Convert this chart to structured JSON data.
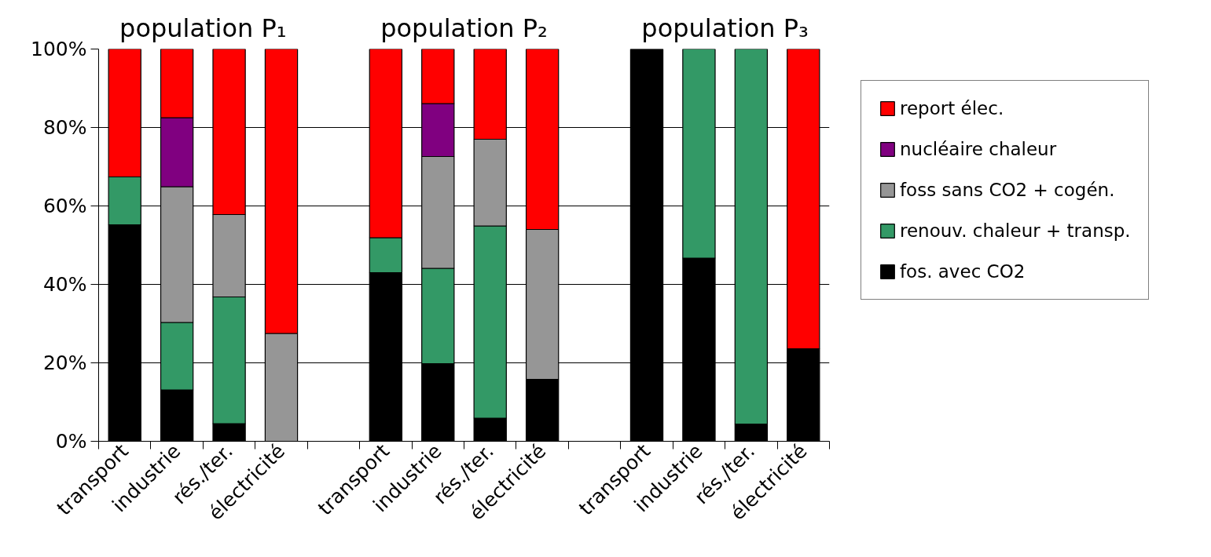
{
  "chart_data": {
    "type": "bar",
    "stacked": true,
    "categories": [
      "transport",
      "industrie",
      "rés./ter.",
      "électricité",
      null,
      "transport",
      "industrie",
      "rés./ter.",
      "électricité",
      null,
      "transport",
      "industrie",
      "rés./ter.",
      "électricité"
    ],
    "series": [
      {
        "name": "fos. avec CO2",
        "color": "#000000",
        "values": [
          55.2,
          13.1,
          4.5,
          null,
          null,
          43.0,
          19.8,
          5.9,
          15.8,
          null,
          100,
          46.7,
          4.4,
          23.6
        ]
      },
      {
        "name": "renouv. chaleur + transp.",
        "color": "#339966",
        "values": [
          12.2,
          17.2,
          32.3,
          null,
          null,
          8.9,
          24.3,
          49.0,
          null,
          null,
          null,
          53.3,
          95.6,
          null
        ]
      },
      {
        "name": "foss sans CO2 + cogén.",
        "color": "#969696",
        "values": [
          null,
          34.6,
          21.0,
          27.5,
          null,
          null,
          28.5,
          22.1,
          38.2,
          null,
          null,
          null,
          null,
          null
        ]
      },
      {
        "name": "nucléaire chaleur",
        "color": "#800080",
        "values": [
          null,
          17.6,
          null,
          null,
          null,
          null,
          13.5,
          null,
          null,
          null,
          null,
          null,
          null,
          null
        ]
      },
      {
        "name": "report élec.",
        "color": "#ff0000",
        "values": [
          32.6,
          17.5,
          42.2,
          72.5,
          null,
          48.1,
          13.9,
          23.0,
          46.0,
          null,
          null,
          null,
          null,
          76.4
        ]
      }
    ],
    "ylim": [
      0,
      100
    ],
    "yticks": [
      {
        "value": 0,
        "label": "0%"
      },
      {
        "value": 20,
        "label": "20%"
      },
      {
        "value": 40,
        "label": "40%"
      },
      {
        "value": 60,
        "label": "60%"
      },
      {
        "value": 80,
        "label": "80%"
      },
      {
        "value": 100,
        "label": "100%"
      }
    ],
    "grid": "y",
    "legend": "right",
    "annotations": [
      "population P₁",
      "population P₂",
      "population P₃"
    ]
  }
}
